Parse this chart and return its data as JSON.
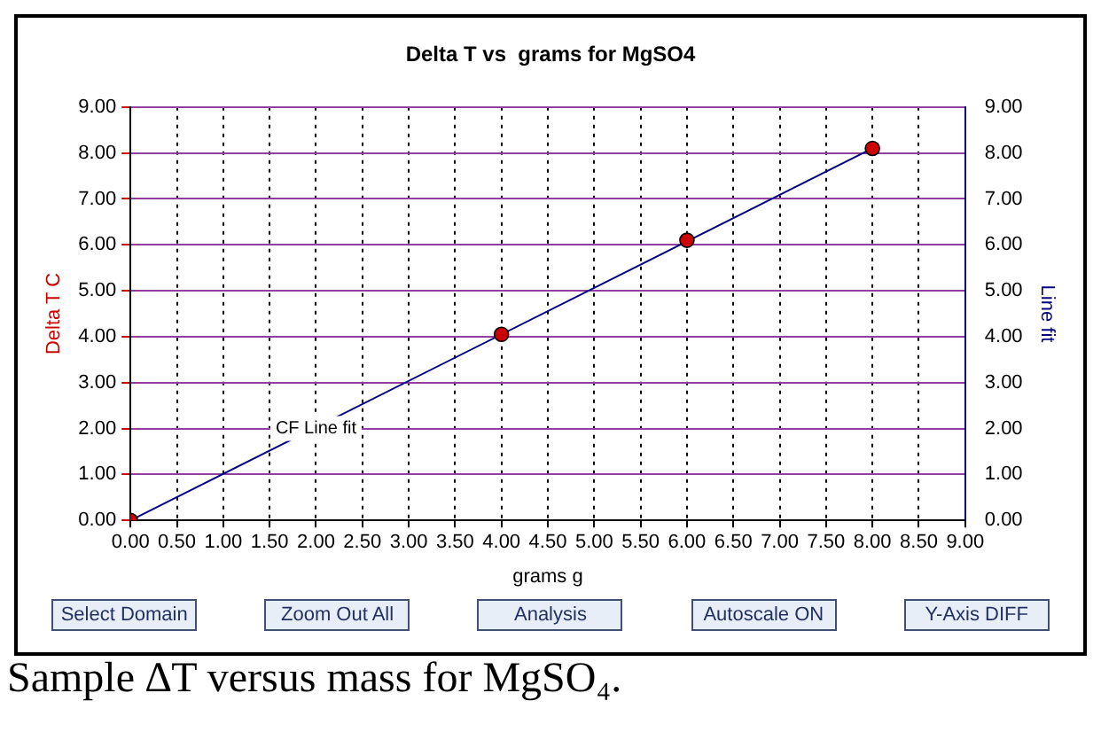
{
  "chart_data": {
    "type": "scatter",
    "title": "Delta T vs  grams for MgSO4",
    "xlabel": "grams g",
    "ylabel": "Delta T C",
    "y2label": "Line fit",
    "xlim": [
      0,
      9
    ],
    "ylim": [
      0,
      9
    ],
    "y2lim": [
      0,
      9
    ],
    "xticks": [
      {
        "value": 0,
        "label": "0.00"
      },
      {
        "value": 0.5,
        "label": "0.50"
      },
      {
        "value": 1,
        "label": "1.00"
      },
      {
        "value": 1.5,
        "label": "1.50"
      },
      {
        "value": 2,
        "label": "2.00"
      },
      {
        "value": 2.5,
        "label": "2.50"
      },
      {
        "value": 3,
        "label": "3.00"
      },
      {
        "value": 3.5,
        "label": "3.50"
      },
      {
        "value": 4,
        "label": "4.00"
      },
      {
        "value": 4.5,
        "label": "4.50"
      },
      {
        "value": 5,
        "label": "5.00"
      },
      {
        "value": 5.5,
        "label": "5.50"
      },
      {
        "value": 6,
        "label": "6.00"
      },
      {
        "value": 6.5,
        "label": "6.50"
      },
      {
        "value": 7,
        "label": "7.00"
      },
      {
        "value": 7.5,
        "label": "7.50"
      },
      {
        "value": 8,
        "label": "8.00"
      },
      {
        "value": 8.5,
        "label": "8.50"
      },
      {
        "value": 9,
        "label": "9.00"
      }
    ],
    "yticks": [
      {
        "value": 0,
        "label": "0.00"
      },
      {
        "value": 1,
        "label": "1.00"
      },
      {
        "value": 2,
        "label": "2.00"
      },
      {
        "value": 3,
        "label": "3.00"
      },
      {
        "value": 4,
        "label": "4.00"
      },
      {
        "value": 5,
        "label": "5.00"
      },
      {
        "value": 6,
        "label": "6.00"
      },
      {
        "value": 7,
        "label": "7.00"
      },
      {
        "value": 8,
        "label": "8.00"
      },
      {
        "value": 9,
        "label": "9.00"
      }
    ],
    "y2ticks": [
      {
        "value": 0,
        "label": "0.00"
      },
      {
        "value": 1,
        "label": "1.00"
      },
      {
        "value": 2,
        "label": "2.00"
      },
      {
        "value": 3,
        "label": "3.00"
      },
      {
        "value": 4,
        "label": "4.00"
      },
      {
        "value": 5,
        "label": "5.00"
      },
      {
        "value": 6,
        "label": "6.00"
      },
      {
        "value": 7,
        "label": "7.00"
      },
      {
        "value": 8,
        "label": "8.00"
      },
      {
        "value": 9,
        "label": "9.00"
      }
    ],
    "x": [
      0,
      4,
      6,
      8
    ],
    "series": [
      {
        "color": "#cc0000",
        "values": [
          0,
          4.05,
          6.1,
          8.1
        ]
      },
      {
        "type": "line",
        "axis": "y2",
        "color": "#000080",
        "x": [
          0,
          8
        ],
        "values": [
          0,
          8.1
        ],
        "marker": "none"
      }
    ],
    "annotations": [
      {
        "text": "CF Line fit",
        "x": 2,
        "y": 2
      },
      "Select Domain",
      "Zoom Out All",
      "Analysis",
      "Autoscale ON",
      "Y-Axis DIFF",
      "Sample ∆T versus mass for MgSO₄."
    ],
    "grid": true,
    "legend": false,
    "marker": "circle",
    "line_style": "solid"
  }
}
